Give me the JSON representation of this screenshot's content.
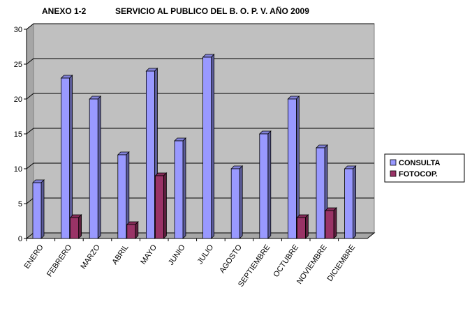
{
  "chart_data": {
    "type": "bar",
    "title_left": "ANEXO 1-2",
    "title": "SERVICIO AL PUBLICO DEL B. O. P. V.  AÑO 2009",
    "categories": [
      "ENERO",
      "FEBRERO",
      "MARZO",
      "ABRIL",
      "MAYO",
      "JUNIO",
      "JULIO",
      "AGOSTO",
      "SEPTIEMBRE",
      "OCTUBRE",
      "NOVIEMBRE",
      "DICIEMBRE"
    ],
    "series": [
      {
        "name": "CONSULTA",
        "color": "#9999ff",
        "values": [
          8,
          23,
          20,
          12,
          24,
          14,
          26,
          10,
          15,
          20,
          13,
          10
        ]
      },
      {
        "name": "FOTOCOP.",
        "color": "#993366",
        "values": [
          0,
          3,
          0,
          2,
          9,
          0,
          0,
          0,
          0,
          3,
          4,
          0
        ]
      }
    ],
    "ylim": [
      0,
      30
    ],
    "yticks": [
      0,
      5,
      10,
      15,
      20,
      25,
      30
    ],
    "grid": true,
    "legend_position": "right",
    "style": "3d-column"
  }
}
